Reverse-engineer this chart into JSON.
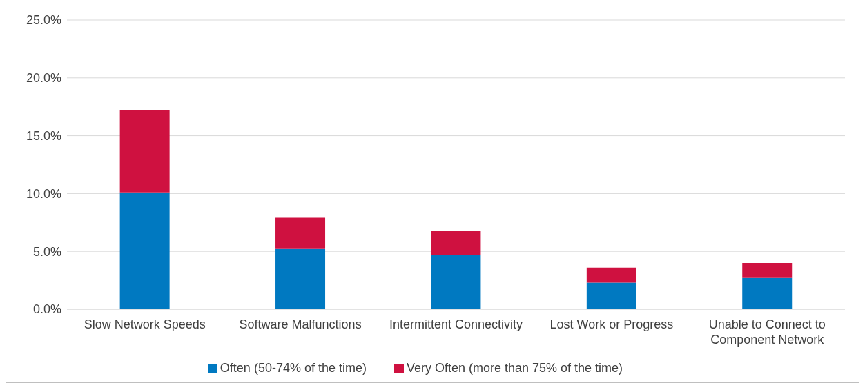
{
  "chart_data": {
    "type": "bar",
    "stacked": true,
    "categories": [
      "Slow Network Speeds",
      "Software Malfunctions",
      "Intermittent Connectivity",
      "Lost Work or Progress",
      "Unable to Connect to Component Network"
    ],
    "series": [
      {
        "name": "Often (50-74% of the time)",
        "color": "#0079c1",
        "values": [
          10.1,
          5.2,
          4.7,
          2.3,
          2.7
        ]
      },
      {
        "name": "Very Often (more than 75% of the time)",
        "color": "#cf1140",
        "values": [
          7.1,
          2.7,
          2.1,
          1.3,
          1.3
        ]
      }
    ],
    "ylim": [
      0,
      25
    ],
    "yticks": [
      {
        "value": 0,
        "label": "0.0%"
      },
      {
        "value": 5,
        "label": "5.0%"
      },
      {
        "value": 10,
        "label": "10.0%"
      },
      {
        "value": 15,
        "label": "15.0%"
      },
      {
        "value": 20,
        "label": "20.0%"
      },
      {
        "value": 25,
        "label": "25.0%"
      }
    ],
    "grid": "y",
    "legend": "bottom"
  }
}
